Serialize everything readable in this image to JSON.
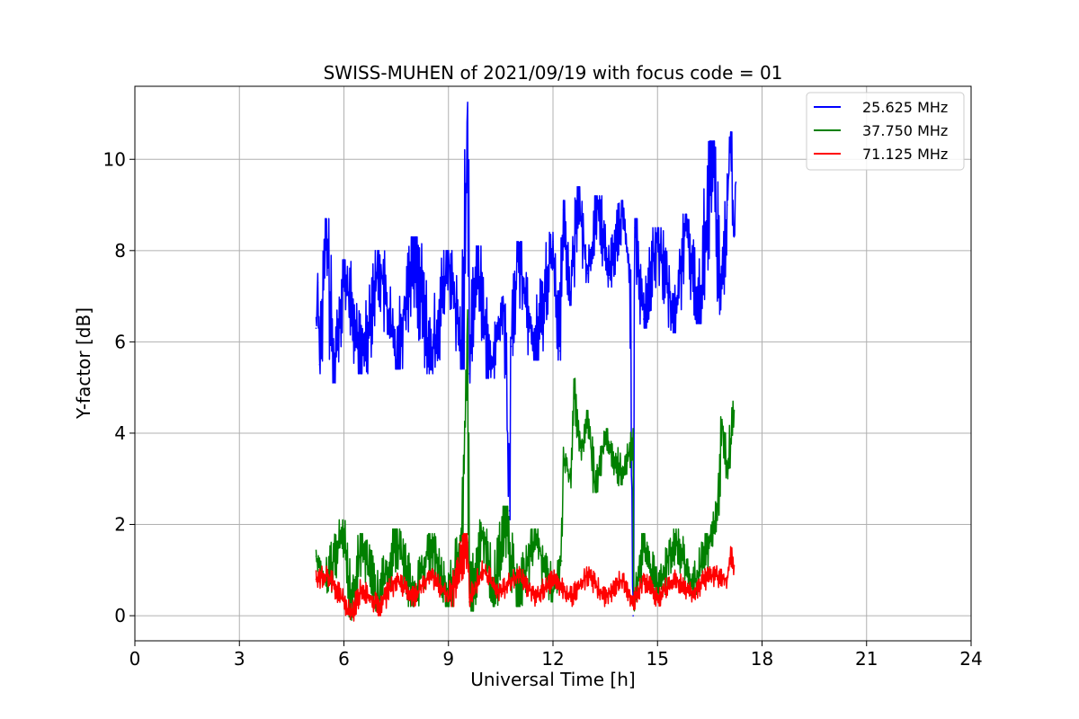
{
  "chart_data": {
    "type": "line",
    "title": "SWISS-MUHEN of 2021/09/19 with focus code = 01",
    "xlabel": "Universal Time [h]",
    "ylabel": "Y-factor [dB]",
    "xlim": [
      0,
      24
    ],
    "ylim": [
      -0.55,
      11.6
    ],
    "xticks": [
      0,
      3,
      6,
      9,
      12,
      15,
      18,
      21,
      24
    ],
    "yticks": [
      0,
      2,
      4,
      6,
      8,
      10
    ],
    "grid": true,
    "legend_position": "top-right",
    "series": [
      {
        "name": "25.625 MHz",
        "color": "#0000ff",
        "points": [
          [
            5.2,
            6.3
          ],
          [
            5.25,
            7.3
          ],
          [
            5.3,
            5.5
          ],
          [
            5.5,
            8.5
          ],
          [
            5.7,
            5.3
          ],
          [
            6.0,
            7.6
          ],
          [
            6.5,
            5.5
          ],
          [
            7.0,
            7.8
          ],
          [
            7.5,
            5.6
          ],
          [
            8.0,
            8.1
          ],
          [
            8.5,
            5.5
          ],
          [
            9.0,
            7.8
          ],
          [
            9.4,
            5.6
          ],
          [
            9.55,
            11.05
          ],
          [
            9.6,
            5.3
          ],
          [
            9.8,
            7.9
          ],
          [
            10.2,
            5.4
          ],
          [
            10.6,
            6.8
          ],
          [
            10.75,
            2.3
          ],
          [
            10.8,
            5.9
          ],
          [
            11.0,
            8.0
          ],
          [
            11.5,
            5.8
          ],
          [
            12.0,
            8.2
          ],
          [
            12.2,
            5.8
          ],
          [
            12.3,
            8.9
          ],
          [
            12.5,
            7.0
          ],
          [
            12.7,
            9.2
          ],
          [
            13.0,
            7.5
          ],
          [
            13.3,
            9.0
          ],
          [
            13.6,
            7.4
          ],
          [
            14.0,
            8.9
          ],
          [
            14.2,
            7.5
          ],
          [
            14.3,
            0.0
          ],
          [
            14.35,
            8.5
          ],
          [
            14.6,
            6.5
          ],
          [
            15.0,
            8.3
          ],
          [
            15.5,
            6.4
          ],
          [
            15.8,
            8.6
          ],
          [
            16.2,
            6.6
          ],
          [
            16.6,
            10.2
          ],
          [
            16.8,
            6.8
          ],
          [
            17.0,
            9.0
          ],
          [
            17.1,
            10.4
          ],
          [
            17.2,
            8.3
          ],
          [
            17.25,
            9.5
          ]
        ]
      },
      {
        "name": "37.750 MHz",
        "color": "#008000",
        "points": [
          [
            5.2,
            1.3
          ],
          [
            5.5,
            0.7
          ],
          [
            6.0,
            1.9
          ],
          [
            6.2,
            0.1
          ],
          [
            6.5,
            1.6
          ],
          [
            7.0,
            0.3
          ],
          [
            7.5,
            1.7
          ],
          [
            8.0,
            0.4
          ],
          [
            8.5,
            1.6
          ],
          [
            9.0,
            0.4
          ],
          [
            9.4,
            1.8
          ],
          [
            9.55,
            6.5
          ],
          [
            9.6,
            0.3
          ],
          [
            10.0,
            1.9
          ],
          [
            10.3,
            0.4
          ],
          [
            10.6,
            2.2
          ],
          [
            11.0,
            0.4
          ],
          [
            11.5,
            1.7
          ],
          [
            12.0,
            0.5
          ],
          [
            12.25,
            1.2
          ],
          [
            12.3,
            3.5
          ],
          [
            12.5,
            3.0
          ],
          [
            12.6,
            5.0
          ],
          [
            12.8,
            3.6
          ],
          [
            13.0,
            4.3
          ],
          [
            13.2,
            2.9
          ],
          [
            13.5,
            3.9
          ],
          [
            14.0,
            3.0
          ],
          [
            14.3,
            3.9
          ],
          [
            14.32,
            0.3
          ],
          [
            14.6,
            1.6
          ],
          [
            15.0,
            0.5
          ],
          [
            15.5,
            1.7
          ],
          [
            16.0,
            0.6
          ],
          [
            16.5,
            1.6
          ],
          [
            16.75,
            2.4
          ],
          [
            16.85,
            4.3
          ],
          [
            17.0,
            3.2
          ],
          [
            17.2,
            4.5
          ]
        ]
      },
      {
        "name": "71.125 MHz",
        "color": "#ff0000",
        "points": [
          [
            5.2,
            0.8
          ],
          [
            5.5,
            0.9
          ],
          [
            6.0,
            0.3
          ],
          [
            6.2,
            0.0
          ],
          [
            6.5,
            0.6
          ],
          [
            7.0,
            0.2
          ],
          [
            7.5,
            0.8
          ],
          [
            8.0,
            0.4
          ],
          [
            8.5,
            0.9
          ],
          [
            9.0,
            0.4
          ],
          [
            9.55,
            1.6
          ],
          [
            9.6,
            0.4
          ],
          [
            10.0,
            1.0
          ],
          [
            10.5,
            0.5
          ],
          [
            11.0,
            0.9
          ],
          [
            11.5,
            0.4
          ],
          [
            12.0,
            0.8
          ],
          [
            12.5,
            0.4
          ],
          [
            13.0,
            0.9
          ],
          [
            13.5,
            0.4
          ],
          [
            14.0,
            0.8
          ],
          [
            14.3,
            0.3
          ],
          [
            14.6,
            0.8
          ],
          [
            15.0,
            0.4
          ],
          [
            15.5,
            0.8
          ],
          [
            16.0,
            0.5
          ],
          [
            16.5,
            0.9
          ],
          [
            17.0,
            0.8
          ],
          [
            17.1,
            1.35
          ],
          [
            17.2,
            1.1
          ]
        ]
      }
    ]
  }
}
